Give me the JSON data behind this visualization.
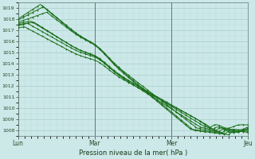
{
  "bg_color": "#cce8e8",
  "grid_color_major": "#aacccc",
  "grid_color_minor": "#bbdddd",
  "line_color": "#1a6e1a",
  "ylim": [
    1007.5,
    1019.5
  ],
  "yticks": [
    1008,
    1009,
    1010,
    1011,
    1012,
    1013,
    1014,
    1015,
    1016,
    1017,
    1018,
    1019
  ],
  "xtick_labels": [
    "Lun",
    "Mar",
    "Mer",
    "Jeu"
  ],
  "xtick_positions": [
    0,
    48,
    96,
    144
  ],
  "xlabel": "Pression niveau de la mer( hPa )",
  "n_points": 145,
  "lines": [
    [
      1018.0,
      1019.3,
      14,
      1008.1,
      108,
      1007.7,
      130,
      1008.3
    ],
    [
      1017.9,
      1019.1,
      16,
      1008.0,
      110,
      1007.6,
      132,
      1008.2
    ],
    [
      1017.7,
      1018.6,
      18,
      1008.2,
      112,
      1007.8,
      128,
      1008.1
    ],
    [
      1017.5,
      1017.7,
      10,
      1008.3,
      114,
      1007.9,
      126,
      1008.0
    ],
    [
      1017.6,
      1017.8,
      8,
      1008.4,
      116,
      1008.0,
      124,
      1007.9
    ],
    [
      1017.4,
      1017.6,
      6,
      1008.5,
      118,
      1008.1,
      122,
      1007.8
    ],
    [
      1017.2,
      1017.3,
      4,
      1009.0,
      112,
      1008.2,
      120,
      1008.5
    ]
  ]
}
